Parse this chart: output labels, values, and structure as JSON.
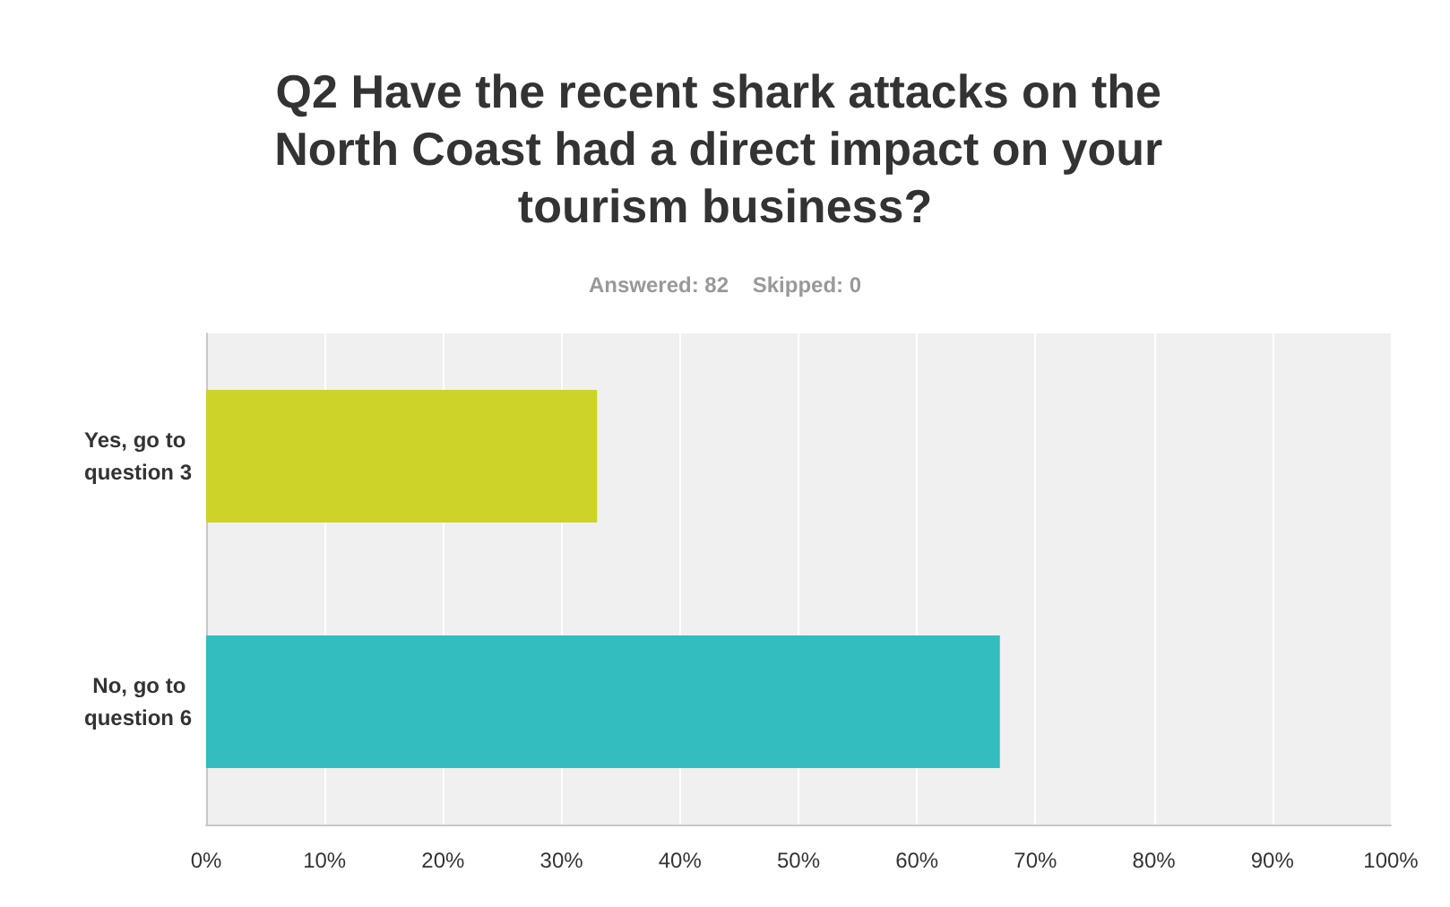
{
  "chart_data": {
    "type": "bar",
    "orientation": "horizontal",
    "title": "Q2 Have the recent shark attacks on the North Coast had a direct impact on your tourism business?",
    "subtitle": "Answered: 82    Skipped: 0",
    "categories": [
      "Yes, go to question 3",
      "No, go to question 6"
    ],
    "values": [
      33,
      67
    ],
    "colors": [
      "#cdd329",
      "#33bdbf"
    ],
    "xlim": [
      0,
      100
    ],
    "xticks": [
      {
        "value": 0,
        "label": "0%"
      },
      {
        "value": 10,
        "label": "10%"
      },
      {
        "value": 20,
        "label": "20%"
      },
      {
        "value": 30,
        "label": "30%"
      },
      {
        "value": 40,
        "label": "40%"
      },
      {
        "value": 50,
        "label": "50%"
      },
      {
        "value": 60,
        "label": "60%"
      },
      {
        "value": 70,
        "label": "70%"
      },
      {
        "value": 80,
        "label": "80%"
      },
      {
        "value": 90,
        "label": "90%"
      },
      {
        "value": 100,
        "label": "100%"
      }
    ],
    "grid": "x"
  }
}
